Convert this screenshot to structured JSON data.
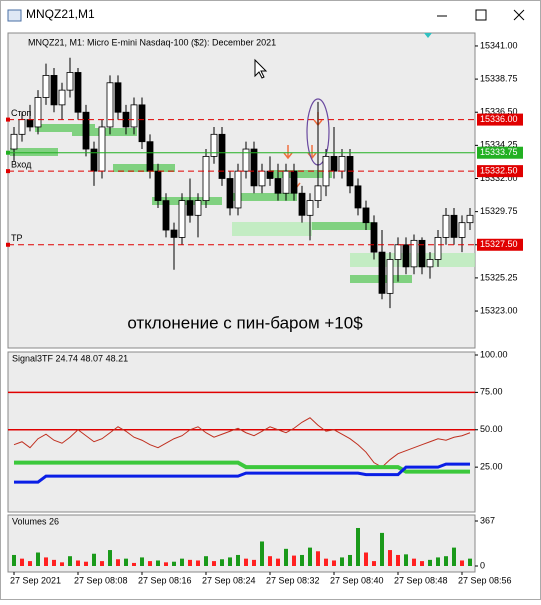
{
  "window": {
    "title": "MNQZ21,M1"
  },
  "chart_data": [
    {
      "type": "candlestick",
      "title": "MNQZ21, M1:  Micro E-mini Nasdaq-100 ($2): December 2021",
      "annotation": "отклонение с пин-баром +10$",
      "categories": [
        "27 Sep 2021",
        null,
        null,
        null,
        null,
        null,
        null,
        null,
        "27 Sep 08:08",
        null,
        null,
        null,
        null,
        null,
        null,
        null,
        "27 Sep 08:16",
        null,
        null,
        null,
        null,
        null,
        null,
        null,
        "27 Sep 08:24",
        null,
        null,
        null,
        null,
        null,
        null,
        null,
        "27 Sep 08:32",
        null,
        null,
        null,
        null,
        null,
        null,
        null,
        "27 Sep 08:40",
        null,
        null,
        null,
        null,
        null,
        null,
        null,
        "27 Sep 08:48",
        null,
        null,
        null,
        null,
        null,
        null,
        null,
        "27 Sep 08:56",
        null
      ],
      "open": [
        15334.0,
        15335.0,
        15336.0,
        15335.5,
        15337.5,
        15339.0,
        15337.0,
        15338.0,
        15339.2,
        15336.5,
        15334.0,
        15332.5,
        15335.5,
        15338.5,
        15336.5,
        15335.5,
        15337.0,
        15334.5,
        15332.5,
        15330.5,
        15328.5,
        15328.0,
        15330.5,
        15329.5,
        15330.5,
        15333.5,
        15335.0,
        15332.0,
        15330.0,
        15332.5,
        15334.0,
        15331.5,
        15332.5,
        15332.0,
        15331.0,
        15332.5,
        15331.0,
        15329.5,
        15330.5,
        15331.5,
        15333.5,
        15332.5,
        15333.5,
        15331.5,
        15330.0,
        15329.0,
        15327.0,
        15324.2,
        15326.5,
        15327.5,
        15326.0,
        15327.8,
        15326.0,
        15326.5,
        15328.0,
        15329.5,
        15328.0,
        15329.0
      ],
      "high": [
        15335.5,
        15336.5,
        15337.0,
        15338.0,
        15339.8,
        15339.5,
        15338.5,
        15340.2,
        15339.5,
        15337.0,
        15334.5,
        15336.0,
        15339.0,
        15339.0,
        15337.0,
        15337.5,
        15337.5,
        15335.0,
        15333.0,
        15331.0,
        15329.0,
        15331.0,
        15332.0,
        15331.0,
        15334.0,
        15335.5,
        15335.5,
        15332.5,
        15333.0,
        15334.5,
        15334.5,
        15333.0,
        15333.5,
        15333.0,
        15333.0,
        15333.0,
        15331.5,
        15331.0,
        15337.2,
        15334.0,
        15335.5,
        15334.0,
        15334.0,
        15332.0,
        15330.5,
        15329.5,
        15328.5,
        15327.0,
        15328.0,
        15328.0,
        15328.2,
        15328.0,
        15327.0,
        15328.5,
        15330.0,
        15330.0,
        15329.5,
        15330.0
      ],
      "low": [
        15333.2,
        15334.5,
        15335.2,
        15335.0,
        15337.0,
        15336.5,
        15336.0,
        15337.5,
        15336.0,
        15333.5,
        15331.5,
        15332.0,
        15335.0,
        15336.0,
        15335.0,
        15335.0,
        15334.0,
        15332.0,
        15330.0,
        15328.0,
        15325.8,
        15327.5,
        15329.0,
        15328.0,
        15330.0,
        15333.0,
        15331.5,
        15329.5,
        15329.5,
        15332.0,
        15331.0,
        15331.0,
        15331.5,
        15330.5,
        15330.5,
        15330.5,
        15329.0,
        15327.8,
        15330.0,
        15330.8,
        15332.0,
        15332.0,
        15331.0,
        15329.5,
        15328.5,
        15326.5,
        15323.8,
        15323.2,
        15325.0,
        15325.5,
        15325.5,
        15325.5,
        15325.2,
        15326.0,
        15327.5,
        15327.5,
        15327.0,
        15328.5
      ],
      "close": [
        15335.0,
        15336.0,
        15335.5,
        15337.5,
        15339.0,
        15337.0,
        15338.0,
        15339.2,
        15336.5,
        15334.0,
        15332.5,
        15335.5,
        15338.5,
        15336.5,
        15335.5,
        15337.0,
        15334.5,
        15332.5,
        15330.5,
        15328.5,
        15328.0,
        15330.5,
        15329.5,
        15330.5,
        15333.5,
        15335.0,
        15332.0,
        15330.0,
        15332.5,
        15334.0,
        15331.5,
        15332.5,
        15332.0,
        15331.0,
        15332.5,
        15331.0,
        15329.5,
        15330.5,
        15331.5,
        15333.5,
        15332.5,
        15333.5,
        15331.5,
        15330.0,
        15329.0,
        15327.0,
        15324.2,
        15326.5,
        15327.5,
        15326.0,
        15327.8,
        15326.0,
        15326.5,
        15328.0,
        15329.5,
        15328.0,
        15329.0,
        15329.5
      ],
      "up_color": "#ffffff",
      "down_color": "#000000",
      "ylim": [
        15320.49,
        15341.88
      ],
      "yticks": [
        {
          "value": 15341,
          "label": "15341.00"
        },
        {
          "value": 15338.75,
          "label": "15338.75"
        },
        {
          "value": 15336.5,
          "label": "15336.50"
        },
        {
          "value": 15334.25,
          "label": "15334.25"
        },
        {
          "value": 15332,
          "label": "15332.00"
        },
        {
          "value": 15329.75,
          "label": "15329.75"
        },
        {
          "value": 15327.5,
          "label": "15327.50"
        },
        {
          "value": 15325.25,
          "label": "15325.25"
        },
        {
          "value": 15323,
          "label": "15323.00"
        }
      ],
      "levels": [
        {
          "value": 15336,
          "label": "15336.00",
          "name": "Стоп",
          "color": "#e00000",
          "style": "dashed"
        },
        {
          "value": 15333.75,
          "label": "15333.75",
          "color": "#22b022",
          "style": "solid"
        },
        {
          "value": 15332.5,
          "label": "15332.50",
          "name": "Вход",
          "color": "#e00000",
          "style": "dashed"
        },
        {
          "value": 15327.5,
          "label": "15327.50",
          "name": "TP",
          "color": "#e00000",
          "style": "dashed"
        }
      ]
    },
    {
      "type": "line",
      "title": "Signal3TF 24.74 48.07 48.21",
      "ylim": [
        -5,
        102
      ],
      "yticks": [
        {
          "value": 100,
          "label": "100.00"
        },
        {
          "value": 75,
          "label": "75.00"
        },
        {
          "value": 50,
          "label": "50.00"
        },
        {
          "value": 25,
          "label": "25.00"
        }
      ],
      "levels": [
        75,
        50
      ],
      "level_color": "#e00000",
      "series": [
        {
          "color": "#c03020",
          "width": 1,
          "values": [
            40,
            42,
            38,
            44,
            47,
            43,
            41,
            45,
            50,
            46,
            42,
            44,
            48,
            52,
            49,
            45,
            43,
            40,
            38,
            41,
            44,
            46,
            50,
            52,
            48,
            45,
            47,
            49,
            51,
            48,
            46,
            49,
            52,
            50,
            48,
            51,
            55,
            58,
            53,
            49,
            50,
            47,
            44,
            40,
            35,
            28,
            25,
            30,
            34,
            36,
            38,
            40,
            42,
            44,
            43,
            45,
            46,
            48
          ]
        },
        {
          "color": "#3cc83c",
          "width": 4,
          "values": [
            28,
            28,
            28,
            28,
            28,
            28,
            28,
            28,
            28,
            28,
            28,
            28,
            28,
            28,
            28,
            28,
            28,
            28,
            28,
            28,
            28,
            28,
            28,
            28,
            28,
            28,
            28,
            28,
            28,
            25,
            25,
            25,
            25,
            25,
            25,
            25,
            25,
            25,
            25,
            25,
            25,
            25,
            25,
            25,
            25,
            25,
            25,
            25,
            25,
            22,
            22,
            22,
            22,
            22,
            22,
            22,
            22,
            22
          ]
        },
        {
          "color": "#0a1ee6",
          "width": 3,
          "values": [
            15,
            15,
            15,
            15,
            19,
            19,
            19,
            19,
            19,
            19,
            19,
            19,
            19,
            19,
            19,
            19,
            19,
            19,
            19,
            19,
            19,
            19,
            19,
            19,
            19,
            19,
            19,
            19,
            19,
            21,
            21,
            21,
            21,
            21,
            21,
            21,
            21,
            21,
            21,
            21,
            21,
            21,
            21,
            21,
            20,
            20,
            20,
            20,
            20,
            25,
            25,
            25,
            25,
            25,
            27,
            27,
            27,
            27
          ]
        }
      ]
    },
    {
      "type": "bar",
      "title": "Volumes 26",
      "ylim": [
        0,
        367
      ],
      "yticks": [
        367,
        0
      ],
      "up_color": "#1a9a1a",
      "down_color": "#ff2020",
      "values": [
        90,
        60,
        40,
        110,
        70,
        50,
        30,
        80,
        45,
        35,
        100,
        40,
        130,
        55,
        60,
        25,
        70,
        40,
        45,
        30,
        35,
        60,
        50,
        45,
        80,
        40,
        55,
        70,
        90,
        60,
        50,
        200,
        80,
        60,
        140,
        85,
        90,
        150,
        120,
        60,
        45,
        70,
        90,
        310,
        110,
        40,
        270,
        130,
        90,
        95,
        60,
        40,
        50,
        70,
        80,
        150,
        45,
        60
      ]
    }
  ]
}
